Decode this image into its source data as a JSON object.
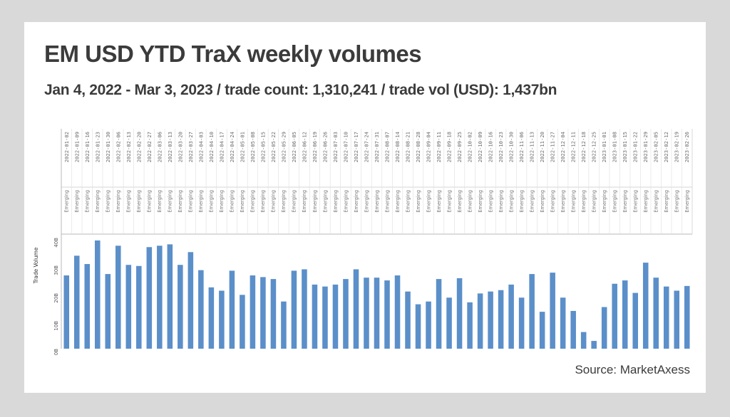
{
  "header": {
    "title": "EM USD YTD TraX weekly volumes",
    "subtitle": "Jan 4, 2022 - Mar 3, 2023 / trade count: 1,310,241 / trade vol (USD): 1,437bn"
  },
  "footer": {
    "source": "Source: MarketAxess"
  },
  "colors": {
    "bar": "#5b8fc9",
    "background": "#d9d9d9",
    "card": "#ffffff",
    "text": "#3b3b3b"
  },
  "chart_data": {
    "type": "bar",
    "ylabel": "Trade Volume",
    "ylim": [
      0,
      40
    ],
    "yticks": [
      0,
      10,
      20,
      30,
      40
    ],
    "ytick_labels": [
      "0B",
      "10B",
      "20B",
      "30B",
      "40B"
    ],
    "group_label": "Emerging",
    "grid": false,
    "categories": [
      "2022-01-02",
      "2022-01-09",
      "2022-01-16",
      "2022-01-23",
      "2022-01-30",
      "2022-02-06",
      "2022-02-13",
      "2022-02-20",
      "2022-02-27",
      "2022-03-06",
      "2022-03-13",
      "2022-03-20",
      "2022-03-27",
      "2022-04-03",
      "2022-04-10",
      "2022-04-17",
      "2022-04-24",
      "2022-05-01",
      "2022-05-08",
      "2022-05-15",
      "2022-05-22",
      "2022-05-29",
      "2022-06-05",
      "2022-06-12",
      "2022-06-19",
      "2022-06-26",
      "2022-07-03",
      "2022-07-10",
      "2022-07-17",
      "2022-07-24",
      "2022-07-31",
      "2022-08-07",
      "2022-08-14",
      "2022-08-21",
      "2022-08-28",
      "2022-09-04",
      "2022-09-11",
      "2022-09-18",
      "2022-09-25",
      "2022-10-02",
      "2022-10-09",
      "2022-10-16",
      "2022-10-23",
      "2022-10-30",
      "2022-11-06",
      "2022-11-13",
      "2022-11-20",
      "2022-11-27",
      "2022-12-04",
      "2022-12-11",
      "2022-12-18",
      "2022-12-25",
      "2023-01-01",
      "2023-01-08",
      "2023-01-15",
      "2023-01-22",
      "2023-01-29",
      "2023-02-05",
      "2023-02-12",
      "2023-02-19",
      "2023-02-26"
    ],
    "values": [
      26.4,
      33.5,
      30.5,
      39.0,
      26.9,
      37.1,
      30.2,
      29.8,
      36.6,
      37.1,
      37.6,
      30.2,
      34.8,
      28.3,
      22.1,
      20.9,
      28.1,
      19.4,
      26.4,
      25.8,
      25.1,
      17.0,
      28.1,
      28.6,
      23.1,
      22.4,
      23.1,
      25.1,
      28.6,
      25.6,
      25.6,
      24.6,
      26.4,
      20.6,
      16.0,
      17.0,
      25.1,
      18.4,
      25.4,
      16.7,
      19.9,
      20.6,
      21.1,
      23.1,
      18.4,
      26.9,
      13.3,
      27.4,
      18.4,
      13.6,
      6.0,
      2.8,
      15.0,
      23.4,
      24.6,
      20.1,
      31.0,
      25.6,
      22.4,
      20.9,
      22.6
    ]
  }
}
